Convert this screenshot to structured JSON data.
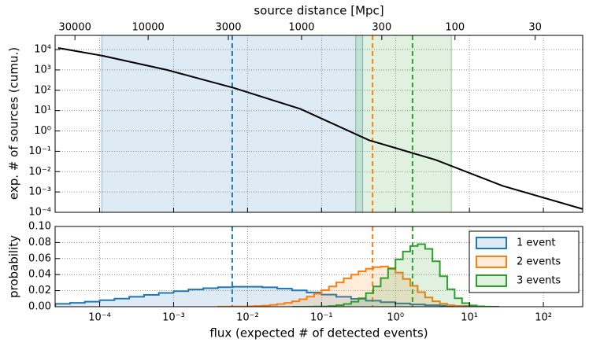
{
  "chart_data": [
    {
      "type": "line",
      "ylabel": "exp. # of sources (cumu.)",
      "x2label": "source distance [Mpc]",
      "log_x": true,
      "log_y": true,
      "grid": true,
      "xlim": [
        2.5e-05,
        340
      ],
      "xticks": [
        0.0001,
        0.001,
        0.01,
        0.1,
        1,
        10,
        100
      ],
      "ylim": [
        0.0001,
        50000
      ],
      "yticks": [
        {
          "value": 0.0001,
          "label": "10⁻⁴"
        },
        {
          "value": 0.001,
          "label": "10⁻³"
        },
        {
          "value": 0.01,
          "label": "10⁻²"
        },
        {
          "value": 0.1,
          "label": "10⁻¹"
        },
        {
          "value": 1,
          "label": "10⁰"
        },
        {
          "value": 10,
          "label": "10¹"
        },
        {
          "value": 100,
          "label": "10²"
        },
        {
          "value": 1000,
          "label": "10³"
        },
        {
          "value": 10000,
          "label": "10⁴"
        }
      ],
      "x2lim": [
        40400,
        14.7
      ],
      "x2ticks": [
        30000,
        10000,
        3000,
        1000,
        300,
        100,
        30
      ],
      "x": [
        2.75e-05,
        0.000112,
        0.00081,
        0.0066,
        0.052,
        0.44,
        3.5,
        28,
        350
      ],
      "series": [
        {
          "color": "#000000",
          "values": [
            12000,
            4900,
            1000,
            130,
            12,
            0.35,
            0.038,
            0.002,
            0.00014
          ]
        }
      ],
      "bands": [
        {
          "from": 0.000107,
          "to": 0.36,
          "color": "#1f77b4"
        },
        {
          "from": 0.29,
          "to": 5.7,
          "color": "#2ca02c"
        }
      ],
      "vlines": [
        {
          "value": 0.0062,
          "color": "#1f77b4"
        },
        {
          "value": 0.49,
          "color": "#ff7f0e"
        },
        {
          "value": 1.7,
          "color": "#2ca02c"
        }
      ]
    },
    {
      "type": "histogram",
      "xlabel": "flux (expected # of detected events)",
      "ylabel": "probability",
      "log_x": true,
      "grid": true,
      "legend": "upper right",
      "xlim": [
        2.5e-05,
        340
      ],
      "xticks": [
        {
          "value": 0.0001,
          "label": "10⁻⁴"
        },
        {
          "value": 0.001,
          "label": "10⁻³"
        },
        {
          "value": 0.01,
          "label": "10⁻²"
        },
        {
          "value": 0.1,
          "label": "10⁻¹"
        },
        {
          "value": 1,
          "label": "10⁰"
        },
        {
          "value": 10,
          "label": "10¹"
        },
        {
          "value": 100,
          "label": "10²"
        }
      ],
      "ylim": [
        0,
        0.1
      ],
      "yticks": [
        {
          "value": 0,
          "label": "0.00"
        },
        {
          "value": 0.02,
          "label": "0.02"
        },
        {
          "value": 0.04,
          "label": "0.04"
        },
        {
          "value": 0.06,
          "label": "0.06"
        },
        {
          "value": 0.08,
          "label": "0.08"
        },
        {
          "value": 0.1,
          "label": "0.10"
        }
      ],
      "series": [
        {
          "name": "1 event",
          "color": "#1f77b4",
          "bins": [
            2.512e-05,
            3.981e-05,
            6.31e-05,
            0.0001,
            0.0001585,
            0.0002512,
            0.0003981,
            0.000631,
            0.001,
            0.001585,
            0.002512,
            0.003981,
            0.00631,
            0.01,
            0.01585,
            0.02512,
            0.03981,
            0.0631,
            0.1,
            0.1585,
            0.2512,
            0.3981,
            0.631,
            1,
            1.585,
            2.512,
            3.981,
            6.31,
            10
          ],
          "values": [
            0.0036,
            0.0048,
            0.0063,
            0.0081,
            0.0101,
            0.0124,
            0.0147,
            0.0171,
            0.0194,
            0.0215,
            0.0231,
            0.0243,
            0.0249,
            0.0249,
            0.0241,
            0.0225,
            0.0204,
            0.0178,
            0.0151,
            0.0124,
            0.0098,
            0.0075,
            0.0056,
            0.004,
            0.0028,
            0.0018,
            0.0012,
            0.0008
          ]
        },
        {
          "name": "2 events",
          "color": "#ff7f0e",
          "bins": [
            0.003981,
            0.005012,
            0.00631,
            0.007943,
            0.01,
            0.01259,
            0.01585,
            0.01995,
            0.02512,
            0.03162,
            0.03981,
            0.05012,
            0.0631,
            0.07943,
            0.1,
            0.1259,
            0.1585,
            0.1995,
            0.2512,
            0.3162,
            0.3981,
            0.5012,
            0.631,
            0.7943,
            1,
            1.259,
            1.585,
            1.995,
            2.512,
            3.162,
            3.981,
            5.012,
            6.31,
            7.943,
            10,
            12.59,
            15.85
          ],
          "values": [
            0.0001,
            0.0001,
            0.0002,
            0.0003,
            0.0006,
            0.0009,
            0.0014,
            0.0022,
            0.0033,
            0.0048,
            0.0068,
            0.0093,
            0.0125,
            0.0162,
            0.0206,
            0.0253,
            0.0303,
            0.0353,
            0.04,
            0.0441,
            0.0473,
            0.0493,
            0.05,
            0.048,
            0.0425,
            0.0346,
            0.026,
            0.018,
            0.0115,
            0.0068,
            0.0037,
            0.0018,
            0.0008,
            0.0004,
            0.0001,
            0.0001
          ]
        },
        {
          "name": "3 events",
          "color": "#2ca02c",
          "bins": [
            0.03981,
            0.05012,
            0.0631,
            0.07943,
            0.1,
            0.1259,
            0.1585,
            0.1995,
            0.2512,
            0.3162,
            0.3981,
            0.5012,
            0.631,
            0.7943,
            1,
            1.259,
            1.585,
            1.995,
            2.512,
            3.162,
            3.981,
            5.012,
            6.31,
            7.943,
            10,
            12.59,
            15.85,
            19.95,
            25.12
          ],
          "values": [
            0,
            0,
            0.0001,
            0.0002,
            0.0004,
            0.0009,
            0.0018,
            0.0034,
            0.0062,
            0.0106,
            0.0169,
            0.0253,
            0.0357,
            0.0473,
            0.0589,
            0.0688,
            0.0756,
            0.078,
            0.072,
            0.0566,
            0.038,
            0.0217,
            0.0106,
            0.0044,
            0.0016,
            0.0005,
            0.0001,
            0
          ]
        }
      ]
    }
  ]
}
